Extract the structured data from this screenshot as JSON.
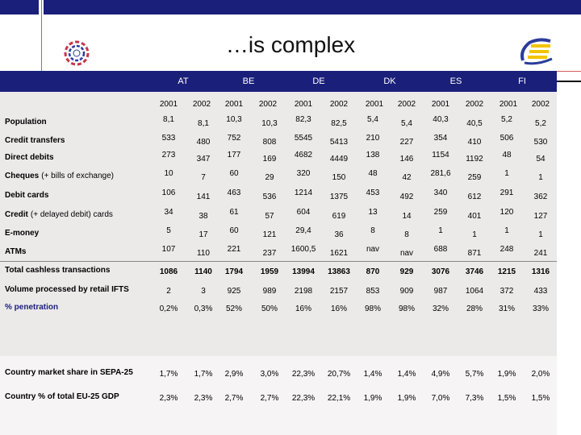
{
  "slide": {
    "title": "…is complex"
  },
  "logos": {
    "left": "circular-flower-logo",
    "right": "eurosystem-e-logo"
  },
  "colors": {
    "header_bg": "#1a1f7a",
    "accent_line": "#d35a5a",
    "panel_bg": "#ece9e9"
  },
  "table": {
    "countries": [
      "AT",
      "BE",
      "DE",
      "DK",
      "ES",
      "FI"
    ],
    "years": [
      "2001",
      "2002",
      "2001",
      "2002",
      "2001",
      "2002",
      "2001",
      "2002",
      "2001",
      "2002",
      "2001",
      "2002"
    ],
    "rows": [
      {
        "label": "Population",
        "suffix": "",
        "values": [
          "8,1",
          "8,1",
          "10,3",
          "10,3",
          "82,3",
          "82,5",
          "5,4",
          "5,4",
          "40,3",
          "40,5",
          "5,2",
          "5,2"
        ]
      },
      {
        "label": "Credit transfers",
        "suffix": "",
        "values": [
          "533",
          "480",
          "752",
          "808",
          "5545",
          "5413",
          "210",
          "227",
          "354",
          "410",
          "506",
          "530"
        ]
      },
      {
        "label": "Direct debits",
        "suffix": "",
        "values": [
          "273",
          "347",
          "177",
          "169",
          "4682",
          "4449",
          "138",
          "146",
          "1154",
          "1192",
          "48",
          "54"
        ]
      },
      {
        "label": "Cheques",
        "suffix": "(+ bills of exchange)",
        "values": [
          "10",
          "7",
          "60",
          "29",
          "320",
          "150",
          "48",
          "42",
          "281,6",
          "259",
          "1",
          "1"
        ]
      },
      {
        "label": "Debit cards",
        "suffix": "",
        "values": [
          "106",
          "141",
          "463",
          "536",
          "1214",
          "1375",
          "453",
          "492",
          "340",
          "612",
          "291",
          "362"
        ]
      },
      {
        "label": "Credit",
        "suffix": "(+ delayed debit) cards",
        "values": [
          "34",
          "38",
          "61",
          "57",
          "604",
          "619",
          "13",
          "14",
          "259",
          "401",
          "120",
          "127"
        ]
      },
      {
        "label": "E-money",
        "suffix": "",
        "values": [
          "5",
          "17",
          "60",
          "121",
          "29,4",
          "36",
          "8",
          "8",
          "1",
          "1",
          "1",
          "1"
        ]
      },
      {
        "label": "ATMs",
        "suffix": "",
        "values": [
          "107",
          "110",
          "221",
          "237",
          "1600,5",
          "1621",
          "nav",
          "nav",
          "688",
          "871",
          "248",
          "241"
        ]
      },
      {
        "label": "Total cashless transactions",
        "suffix": "",
        "values": [
          "1086",
          "1140",
          "1794",
          "1959",
          "13994",
          "13863",
          "870",
          "929",
          "3076",
          "3746",
          "1215",
          "1316"
        ]
      },
      {
        "label": "Volume processed by retail IFTS",
        "suffix": "",
        "values": [
          "2",
          "3",
          "925",
          "989",
          "2198",
          "2157",
          "853",
          "909",
          "987",
          "1064",
          "372",
          "433"
        ]
      },
      {
        "label": "% penetration",
        "suffix": "",
        "values": [
          "0,2%",
          "0,3%",
          "52%",
          "50%",
          "16%",
          "16%",
          "98%",
          "98%",
          "32%",
          "28%",
          "31%",
          "33%"
        ]
      },
      {
        "label": "Country market share in SEPA-25",
        "suffix": "",
        "values": [
          "1,7%",
          "1,7%",
          "2,9%",
          "3,0%",
          "22,3%",
          "20,7%",
          "1,4%",
          "1,4%",
          "4,9%",
          "5,7%",
          "1,9%",
          "2,0%"
        ]
      },
      {
        "label": "Country % of total EU-25 GDP",
        "suffix": "",
        "values": [
          "2,3%",
          "2,3%",
          "2,7%",
          "2,7%",
          "22,3%",
          "22,1%",
          "1,9%",
          "1,9%",
          "7,0%",
          "7,3%",
          "1,5%",
          "1,5%"
        ]
      }
    ]
  }
}
